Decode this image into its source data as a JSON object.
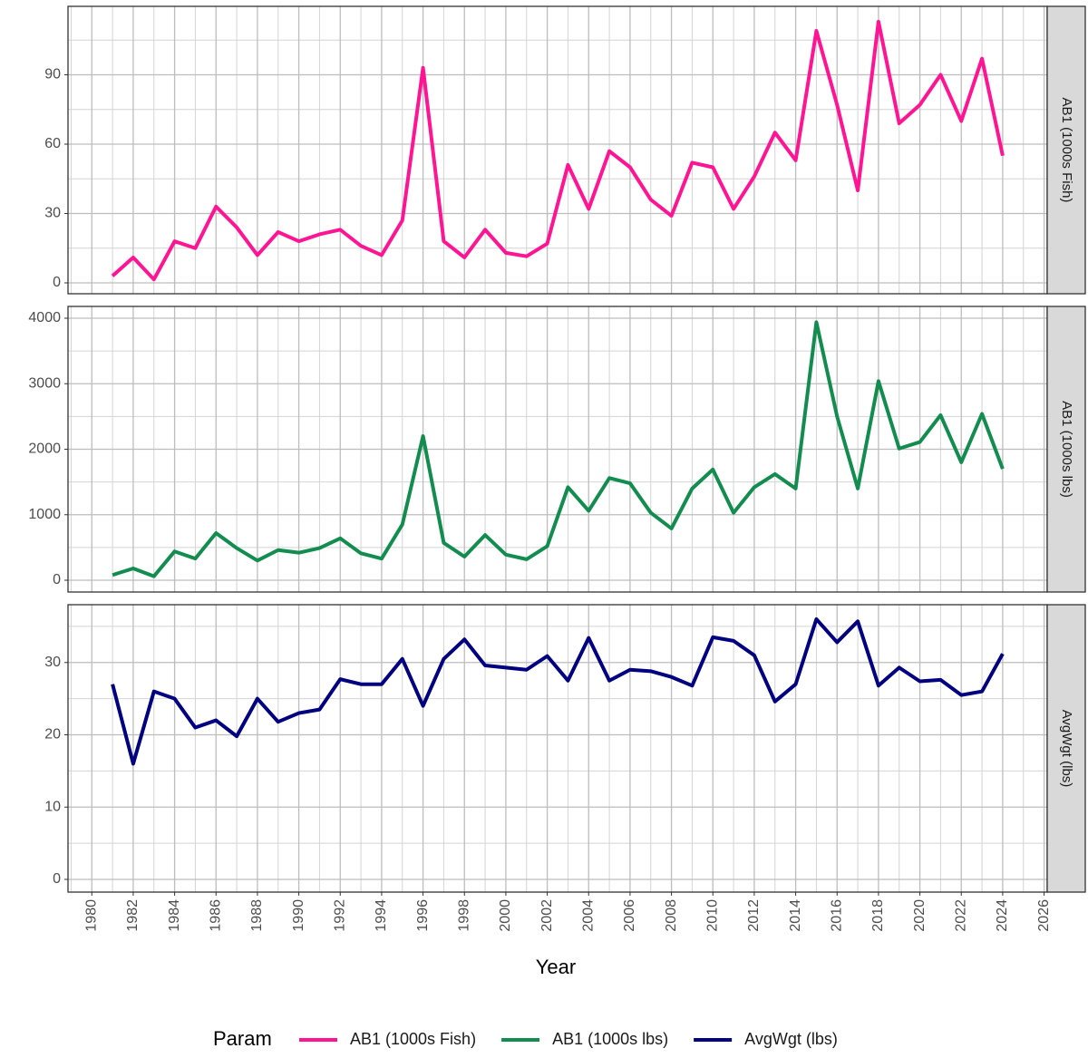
{
  "chart_data": {
    "type": "line",
    "x_label": "Year",
    "legend_title": "Param",
    "legend_position": "bottom",
    "grid": true,
    "x": [
      1981,
      1982,
      1983,
      1984,
      1985,
      1986,
      1987,
      1988,
      1989,
      1990,
      1991,
      1992,
      1993,
      1994,
      1995,
      1996,
      1997,
      1998,
      1999,
      2000,
      2001,
      2002,
      2003,
      2004,
      2005,
      2006,
      2007,
      2008,
      2009,
      2010,
      2011,
      2012,
      2013,
      2014,
      2015,
      2016,
      2017,
      2018,
      2019,
      2020,
      2021,
      2022,
      2023,
      2024
    ],
    "xlim": [
      1978.85,
      2026.15
    ],
    "xticks": [
      1980,
      1982,
      1984,
      1986,
      1988,
      1990,
      1992,
      1994,
      1996,
      1998,
      2000,
      2002,
      2004,
      2006,
      2008,
      2010,
      2012,
      2014,
      2016,
      2018,
      2020,
      2022,
      2024,
      2026
    ],
    "series": [
      {
        "name": "AB1 (1000s Fish)",
        "color": "#ff1493",
        "ylim": [
          -4.7,
          119.6
        ],
        "yticks": [
          0,
          30,
          60,
          90
        ],
        "values": [
          3,
          11,
          1.5,
          18,
          15,
          33,
          24,
          12,
          22,
          18,
          21,
          23,
          16,
          12,
          27,
          93,
          18,
          11,
          23,
          13,
          11.5,
          17,
          51,
          32,
          57,
          50,
          36,
          29,
          52,
          50,
          32,
          46,
          65,
          53,
          109,
          77,
          40,
          113,
          69,
          77,
          90,
          70,
          97,
          55
        ]
      },
      {
        "name": "AB1 (1000s lbs)",
        "color": "#138d4f",
        "ylim": [
          -180,
          4180
        ],
        "yticks": [
          0,
          1000,
          2000,
          3000,
          4000
        ],
        "values": [
          80,
          180,
          60,
          440,
          330,
          720,
          490,
          300,
          460,
          420,
          490,
          640,
          410,
          330,
          850,
          2200,
          570,
          360,
          690,
          390,
          320,
          520,
          1420,
          1060,
          1560,
          1480,
          1030,
          790,
          1400,
          1690,
          1030,
          1420,
          1620,
          1400,
          3940,
          2500,
          1400,
          3040,
          2010,
          2110,
          2520,
          1800,
          2540,
          1700
        ]
      },
      {
        "name": "AvgWgt (lbs)",
        "color": "#000080",
        "ylim": [
          -1.76,
          38.0
        ],
        "yticks": [
          0,
          10,
          20,
          30
        ],
        "values": [
          27,
          16,
          26,
          25,
          21,
          22,
          19.8,
          25,
          21.8,
          23,
          23.5,
          27.7,
          27,
          27,
          30.5,
          24,
          30.5,
          33.2,
          29.6,
          29.3,
          29,
          30.9,
          27.5,
          33.4,
          27.5,
          29,
          28.8,
          28,
          26.8,
          33.5,
          33,
          31,
          24.6,
          27,
          36,
          32.8,
          35.7,
          26.8,
          29.3,
          27.4,
          27.6,
          25.5,
          26,
          31.2
        ]
      }
    ]
  }
}
